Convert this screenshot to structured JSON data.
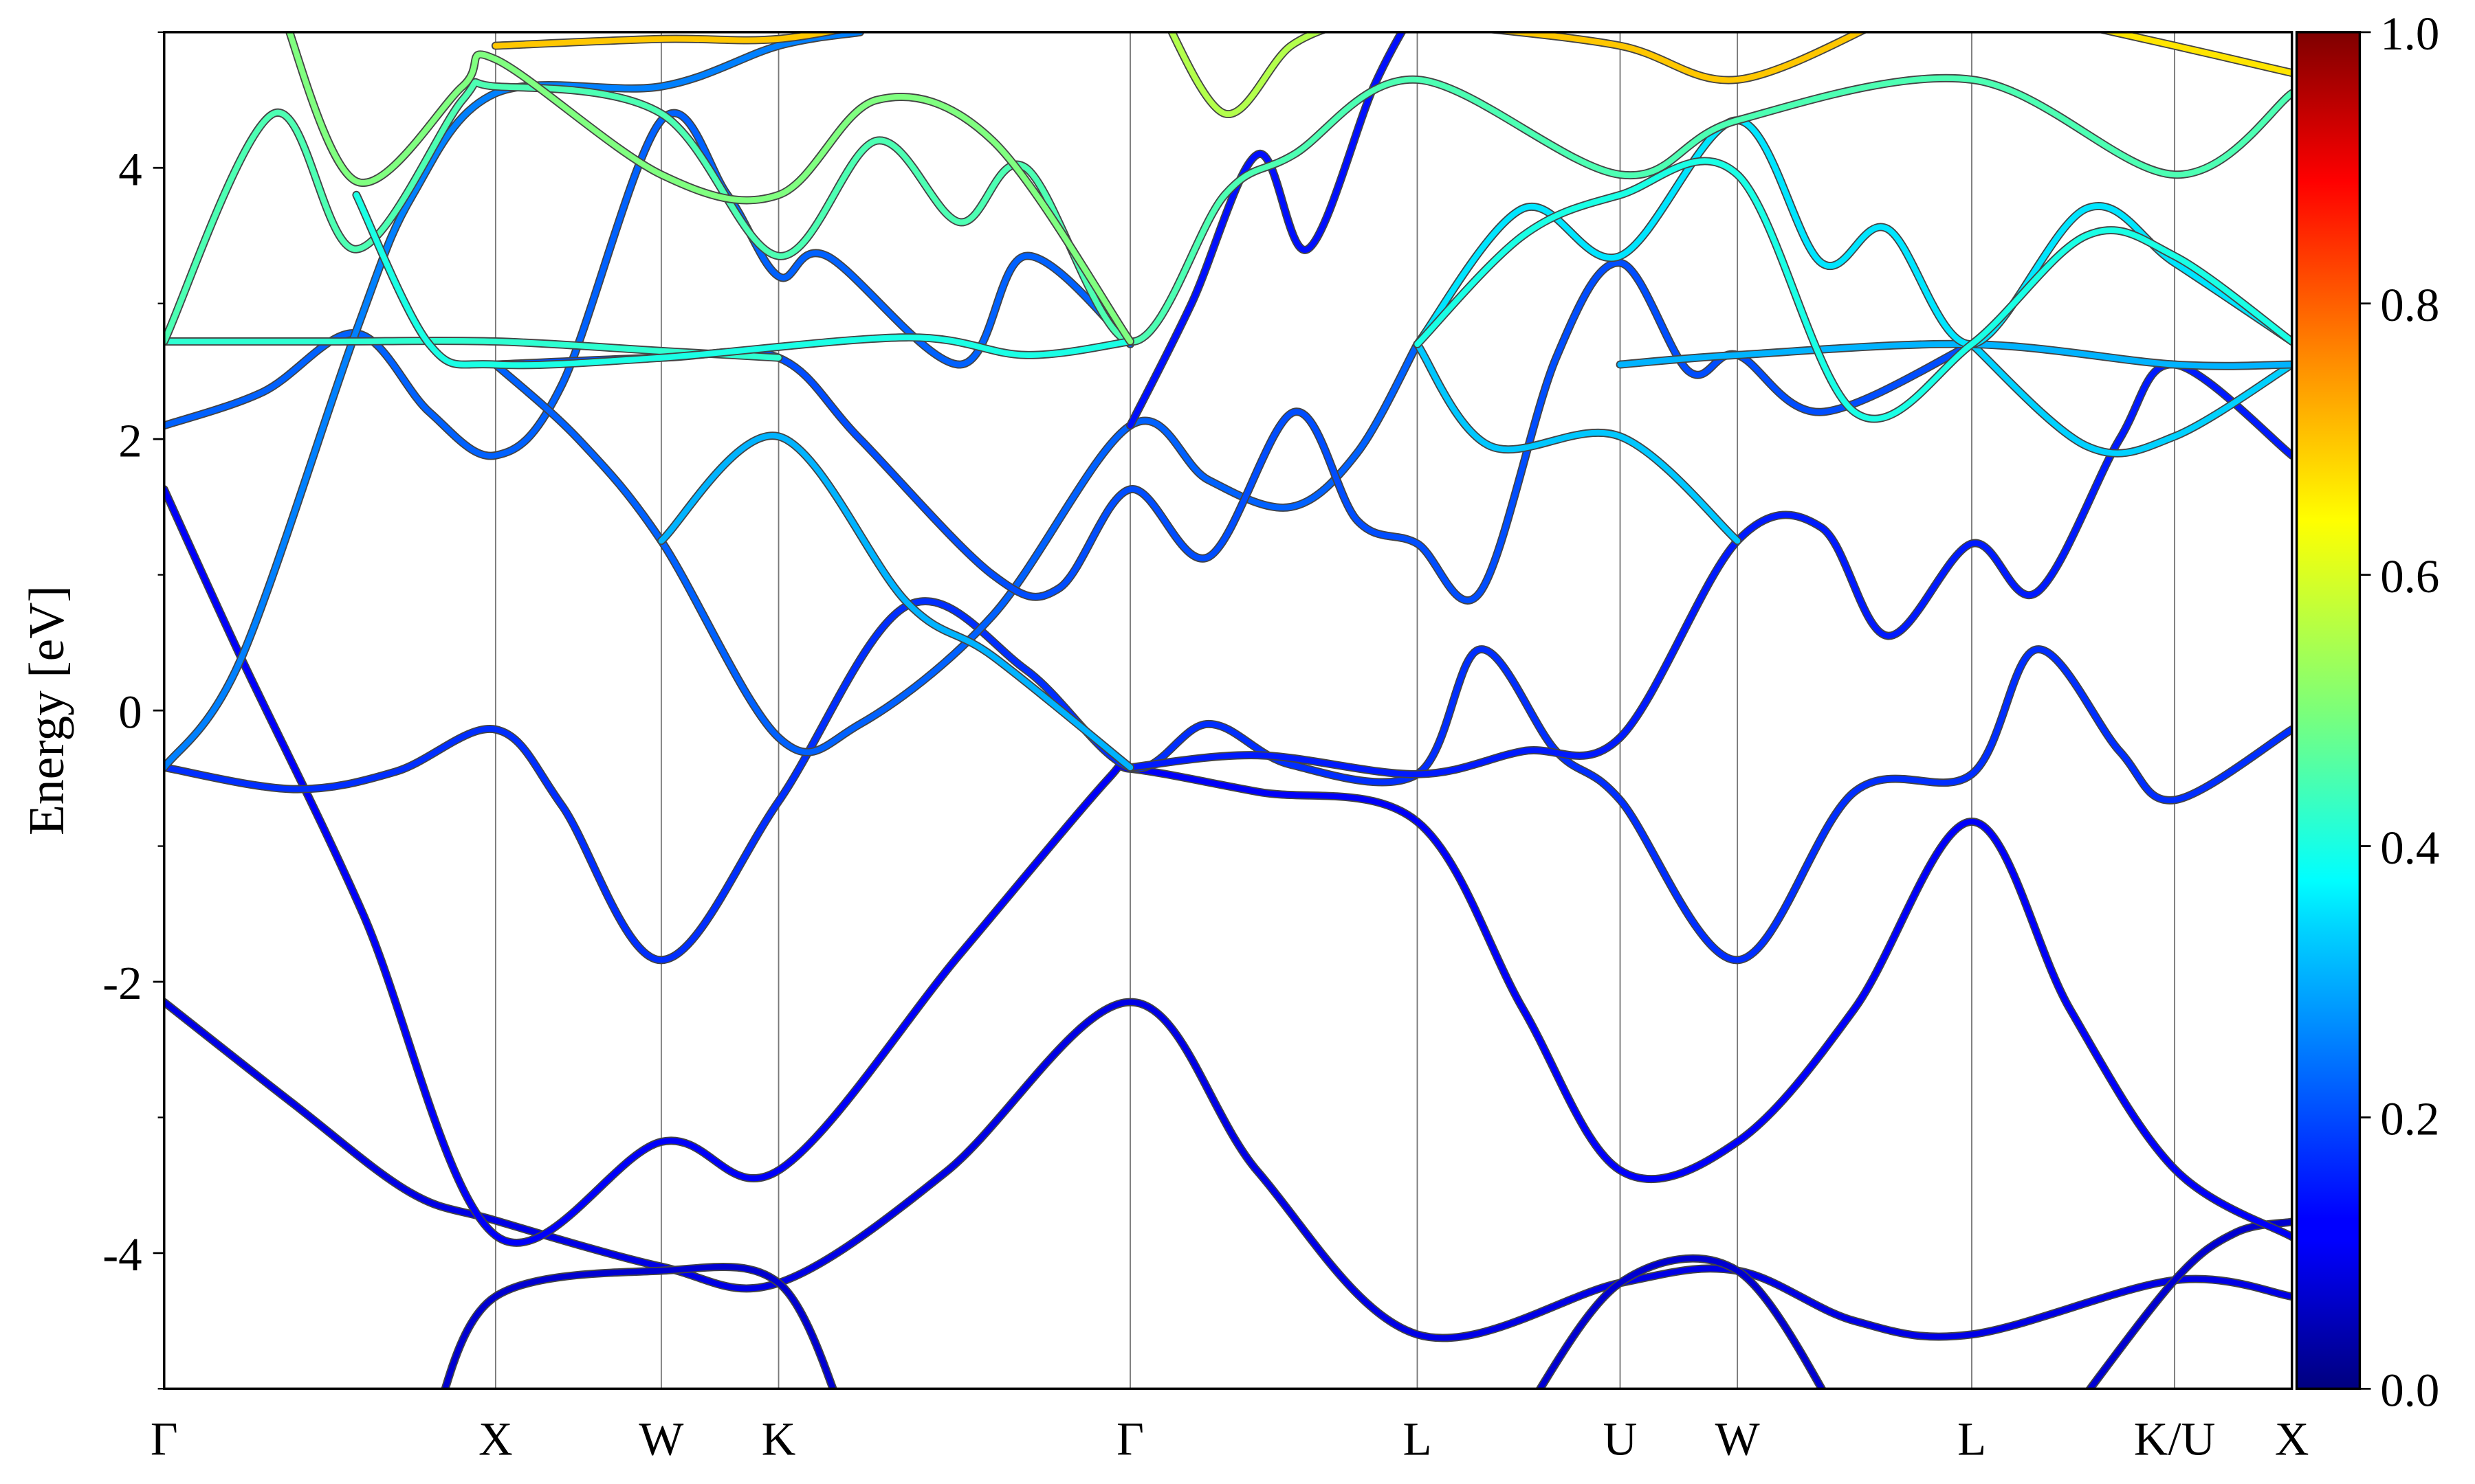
{
  "chart_data": {
    "type": "line",
    "title": "",
    "xlabel": "",
    "ylabel": "Energy [eV]",
    "ylim": [
      -5,
      5
    ],
    "xlim": [
      0,
      6.42
    ],
    "grid": false,
    "y_ticks": [
      -4,
      -2,
      0,
      2,
      4
    ],
    "y_tick_labels": [
      "-4",
      "-2",
      "0",
      "2",
      "4"
    ],
    "k_points": [
      {
        "label": "Γ",
        "k": 0
      },
      {
        "label": "X",
        "k": 1.0
      },
      {
        "label": "W",
        "k": 1.5
      },
      {
        "label": "K",
        "k": 1.854
      },
      {
        "label": "Γ",
        "k": 2.915
      },
      {
        "label": "L",
        "k": 3.781
      },
      {
        "label": "U",
        "k": 4.393
      },
      {
        "label": "W",
        "k": 4.747
      },
      {
        "label": "L",
        "k": 5.454
      },
      {
        "label": "K/U",
        "k": 6.066
      },
      {
        "label": "X",
        "k": 6.42
      }
    ],
    "colorbar": {
      "colormap": "jet",
      "range": [
        0,
        1
      ],
      "ticks": [
        "0.0",
        "0.2",
        "0.4",
        "0.6",
        "0.8",
        "1.0"
      ]
    },
    "bands": [
      {
        "weight": 0.1,
        "points": [
          [
            0,
            -2.15
          ],
          [
            0.39,
            -2.9
          ],
          [
            0.74,
            -3.55
          ],
          [
            1.0,
            -3.76
          ],
          [
            1.5,
            -4.1
          ],
          [
            1.854,
            -4.22
          ],
          [
            2.36,
            -3.4
          ],
          [
            2.915,
            -2.15
          ],
          [
            3.3,
            -3.4
          ],
          [
            3.781,
            -4.6
          ],
          [
            4.393,
            -4.22
          ],
          [
            4.747,
            -4.13
          ],
          [
            5.1,
            -4.5
          ],
          [
            5.454,
            -4.6
          ],
          [
            6.066,
            -4.2
          ],
          [
            6.42,
            -4.32
          ]
        ]
      },
      {
        "weight": 0.08,
        "points": [
          [
            0.82,
            -5.2
          ],
          [
            1.0,
            -4.32
          ],
          [
            1.5,
            -4.13
          ],
          [
            1.854,
            -4.22
          ],
          [
            2.05,
            -5.2
          ]
        ]
      },
      {
        "weight": 0.08,
        "points": [
          [
            4.1,
            -5.2
          ],
          [
            4.393,
            -4.22
          ],
          [
            4.747,
            -4.13
          ],
          [
            5.05,
            -5.2
          ]
        ]
      },
      {
        "weight": 0.08,
        "points": [
          [
            5.75,
            -5.2
          ],
          [
            6.066,
            -4.2
          ],
          [
            6.25,
            -3.85
          ],
          [
            6.42,
            -3.77
          ]
        ]
      },
      {
        "weight": 0.12,
        "points": [
          [
            0,
            1.63
          ],
          [
            0.23,
            0.4
          ],
          [
            0.6,
            -1.5
          ],
          [
            1.0,
            -3.87
          ],
          [
            1.5,
            -3.18
          ],
          [
            1.854,
            -3.39
          ],
          [
            2.4,
            -1.8
          ],
          [
            2.85,
            -0.5
          ],
          [
            2.915,
            -0.43
          ],
          [
            3.3,
            -0.6
          ],
          [
            3.781,
            -0.82
          ],
          [
            4.1,
            -2.2
          ],
          [
            4.393,
            -3.39
          ],
          [
            4.747,
            -3.18
          ],
          [
            5.1,
            -2.2
          ],
          [
            5.454,
            -0.82
          ],
          [
            5.75,
            -2.2
          ],
          [
            6.066,
            -3.38
          ],
          [
            6.42,
            -3.88
          ]
        ]
      },
      {
        "weight": 0.17,
        "points": [
          [
            0,
            -0.42
          ],
          [
            0.39,
            -0.58
          ],
          [
            0.7,
            -0.45
          ],
          [
            1.0,
            -0.14
          ],
          [
            1.2,
            -0.7
          ],
          [
            1.5,
            -1.84
          ],
          [
            1.854,
            -0.67
          ],
          [
            2.24,
            0.77
          ],
          [
            2.6,
            0.3
          ],
          [
            2.915,
            -0.42
          ],
          [
            3.15,
            -0.1
          ],
          [
            3.4,
            -0.4
          ],
          [
            3.781,
            -0.47
          ],
          [
            3.97,
            0.45
          ],
          [
            4.2,
            -0.3
          ],
          [
            4.393,
            -0.66
          ],
          [
            4.747,
            -1.84
          ],
          [
            5.1,
            -0.6
          ],
          [
            5.454,
            -0.47
          ],
          [
            5.65,
            0.45
          ],
          [
            5.9,
            -0.3
          ],
          [
            6.066,
            -0.66
          ],
          [
            6.42,
            -0.14
          ]
        ]
      },
      {
        "weight": 0.15,
        "points": [
          [
            2.915,
            -0.42
          ],
          [
            3.3,
            -0.33
          ],
          [
            3.781,
            -0.47
          ],
          [
            4.1,
            -0.3
          ],
          [
            4.393,
            -0.2
          ],
          [
            4.747,
            1.25
          ],
          [
            5.0,
            1.35
          ],
          [
            5.2,
            0.55
          ],
          [
            5.454,
            1.23
          ],
          [
            5.65,
            0.87
          ],
          [
            5.9,
            2.0
          ],
          [
            6.066,
            2.55
          ],
          [
            6.42,
            1.88
          ]
        ]
      },
      {
        "weight": 0.22,
        "points": [
          [
            0,
            2.1
          ],
          [
            0.3,
            2.35
          ],
          [
            0.58,
            2.78
          ],
          [
            0.8,
            2.2
          ],
          [
            1.0,
            1.88
          ],
          [
            1.2,
            2.4
          ],
          [
            1.5,
            4.35
          ],
          [
            1.7,
            3.8
          ],
          [
            1.854,
            3.2
          ],
          [
            2.0,
            3.35
          ],
          [
            2.4,
            2.55
          ],
          [
            2.6,
            3.35
          ],
          [
            2.915,
            2.7
          ]
        ]
      },
      {
        "weight": 0.25,
        "points": [
          [
            0,
            -0.42
          ],
          [
            0.23,
            0.37
          ],
          [
            0.58,
            2.8
          ],
          [
            0.75,
            3.8
          ],
          [
            1.0,
            4.55
          ],
          [
            1.5,
            4.6
          ],
          [
            1.854,
            4.9
          ],
          [
            2.1,
            5.0
          ]
        ]
      },
      {
        "weight": 0.22,
        "points": [
          [
            1.0,
            2.55
          ],
          [
            1.25,
            2.0
          ],
          [
            1.5,
            1.25
          ],
          [
            1.854,
            -0.2
          ],
          [
            2.1,
            -0.1
          ],
          [
            2.5,
            0.7
          ],
          [
            2.915,
            2.1
          ],
          [
            3.15,
            1.7
          ],
          [
            3.4,
            1.5
          ],
          [
            3.6,
            1.9
          ],
          [
            3.781,
            2.7
          ]
        ]
      },
      {
        "weight": 0.2,
        "points": [
          [
            1.0,
            2.55
          ],
          [
            1.5,
            2.6
          ],
          [
            1.854,
            2.6
          ],
          [
            2.1,
            2.0
          ],
          [
            2.5,
            1.0
          ],
          [
            2.7,
            0.9
          ],
          [
            2.915,
            1.63
          ],
          [
            3.15,
            1.13
          ],
          [
            3.41,
            2.2
          ],
          [
            3.6,
            1.4
          ],
          [
            3.781,
            1.23
          ],
          [
            3.97,
            0.87
          ],
          [
            4.2,
            2.6
          ],
          [
            4.393,
            3.3
          ],
          [
            4.6,
            2.5
          ],
          [
            4.747,
            2.62
          ],
          [
            5.0,
            2.2
          ],
          [
            5.454,
            2.7
          ]
        ]
      },
      {
        "weight": 0.3,
        "points": [
          [
            1.5,
            1.25
          ],
          [
            1.854,
            2.02
          ],
          [
            2.24,
            0.8
          ],
          [
            2.5,
            0.4
          ],
          [
            2.915,
            -0.42
          ]
        ]
      },
      {
        "weight": 0.14,
        "points": [
          [
            2.915,
            2.1
          ],
          [
            3.1,
            3.0
          ],
          [
            3.3,
            4.1
          ],
          [
            3.45,
            3.4
          ],
          [
            3.65,
            4.6
          ],
          [
            3.781,
            5.2
          ]
        ]
      },
      {
        "weight": 0.32,
        "points": [
          [
            3.781,
            2.7
          ],
          [
            4.0,
            1.95
          ],
          [
            4.393,
            2.02
          ],
          [
            4.747,
            1.25
          ]
        ]
      },
      {
        "weight": 0.33,
        "points": [
          [
            5.454,
            2.7
          ],
          [
            5.8,
            1.95
          ],
          [
            6.066,
            2.02
          ],
          [
            6.42,
            2.55
          ]
        ]
      },
      {
        "weight": 0.3,
        "points": [
          [
            4.393,
            2.55
          ],
          [
            4.747,
            2.62
          ],
          [
            5.454,
            2.7
          ],
          [
            6.066,
            2.55
          ],
          [
            6.42,
            2.55
          ]
        ]
      },
      {
        "weight": 0.35,
        "points": [
          [
            3.781,
            2.7
          ],
          [
            4.1,
            3.7
          ],
          [
            4.393,
            3.35
          ],
          [
            4.747,
            4.35
          ],
          [
            5.0,
            3.3
          ],
          [
            5.2,
            3.55
          ],
          [
            5.454,
            2.7
          ],
          [
            5.8,
            3.7
          ],
          [
            6.066,
            3.3
          ],
          [
            6.42,
            2.72
          ]
        ]
      },
      {
        "weight": 0.42,
        "points": [
          [
            0,
            2.72
          ],
          [
            0.5,
            2.72
          ],
          [
            1.0,
            2.72
          ],
          [
            1.5,
            2.65
          ],
          [
            1.854,
            2.6
          ]
        ]
      },
      {
        "weight": 0.45,
        "points": [
          [
            0,
            2.72
          ],
          [
            0.33,
            4.4
          ],
          [
            0.58,
            3.4
          ],
          [
            0.9,
            4.5
          ],
          [
            1.0,
            4.6
          ],
          [
            1.5,
            4.4
          ],
          [
            1.854,
            3.35
          ],
          [
            2.15,
            4.2
          ],
          [
            2.4,
            3.6
          ],
          [
            2.6,
            4.0
          ],
          [
            2.915,
            2.72
          ],
          [
            3.2,
            3.8
          ],
          [
            3.41,
            4.1
          ],
          [
            3.781,
            4.65
          ],
          [
            4.393,
            3.95
          ],
          [
            4.747,
            4.35
          ],
          [
            5.454,
            4.65
          ],
          [
            6.066,
            3.95
          ],
          [
            6.42,
            4.55
          ]
        ]
      },
      {
        "weight": 0.4,
        "points": [
          [
            0.58,
            3.8
          ],
          [
            0.8,
            2.7
          ],
          [
            1.0,
            2.55
          ],
          [
            1.5,
            2.6
          ],
          [
            2.24,
            2.75
          ],
          [
            2.6,
            2.62
          ],
          [
            2.915,
            2.72
          ]
        ]
      },
      {
        "weight": 0.5,
        "points": [
          [
            0.35,
            5.2
          ],
          [
            0.58,
            3.9
          ],
          [
            0.9,
            4.6
          ],
          [
            1.0,
            4.8
          ],
          [
            1.5,
            3.95
          ],
          [
            1.854,
            3.8
          ],
          [
            2.15,
            4.5
          ],
          [
            2.5,
            4.2
          ],
          [
            2.915,
            2.72
          ]
        ]
      },
      {
        "weight": 0.4,
        "points": [
          [
            3.781,
            2.7
          ],
          [
            4.1,
            3.5
          ],
          [
            4.393,
            3.8
          ],
          [
            4.747,
            3.95
          ],
          [
            5.1,
            2.2
          ],
          [
            5.454,
            2.7
          ],
          [
            5.8,
            3.5
          ],
          [
            6.066,
            3.35
          ],
          [
            6.42,
            2.72
          ]
        ]
      },
      {
        "weight": 0.68,
        "points": [
          [
            1.0,
            4.9
          ],
          [
            1.5,
            4.95
          ],
          [
            1.854,
            4.95
          ],
          [
            2.2,
            5.1
          ]
        ]
      },
      {
        "weight": 0.68,
        "points": [
          [
            3.9,
            5.05
          ],
          [
            4.393,
            4.9
          ],
          [
            4.747,
            4.65
          ],
          [
            5.2,
            5.1
          ]
        ]
      },
      {
        "weight": 0.65,
        "points": [
          [
            5.7,
            5.1
          ],
          [
            6.066,
            4.9
          ],
          [
            6.42,
            4.7
          ]
        ]
      },
      {
        "weight": 0.55,
        "points": [
          [
            3.0,
            5.2
          ],
          [
            3.2,
            4.4
          ],
          [
            3.4,
            4.9
          ],
          [
            3.6,
            5.1
          ]
        ]
      }
    ]
  }
}
